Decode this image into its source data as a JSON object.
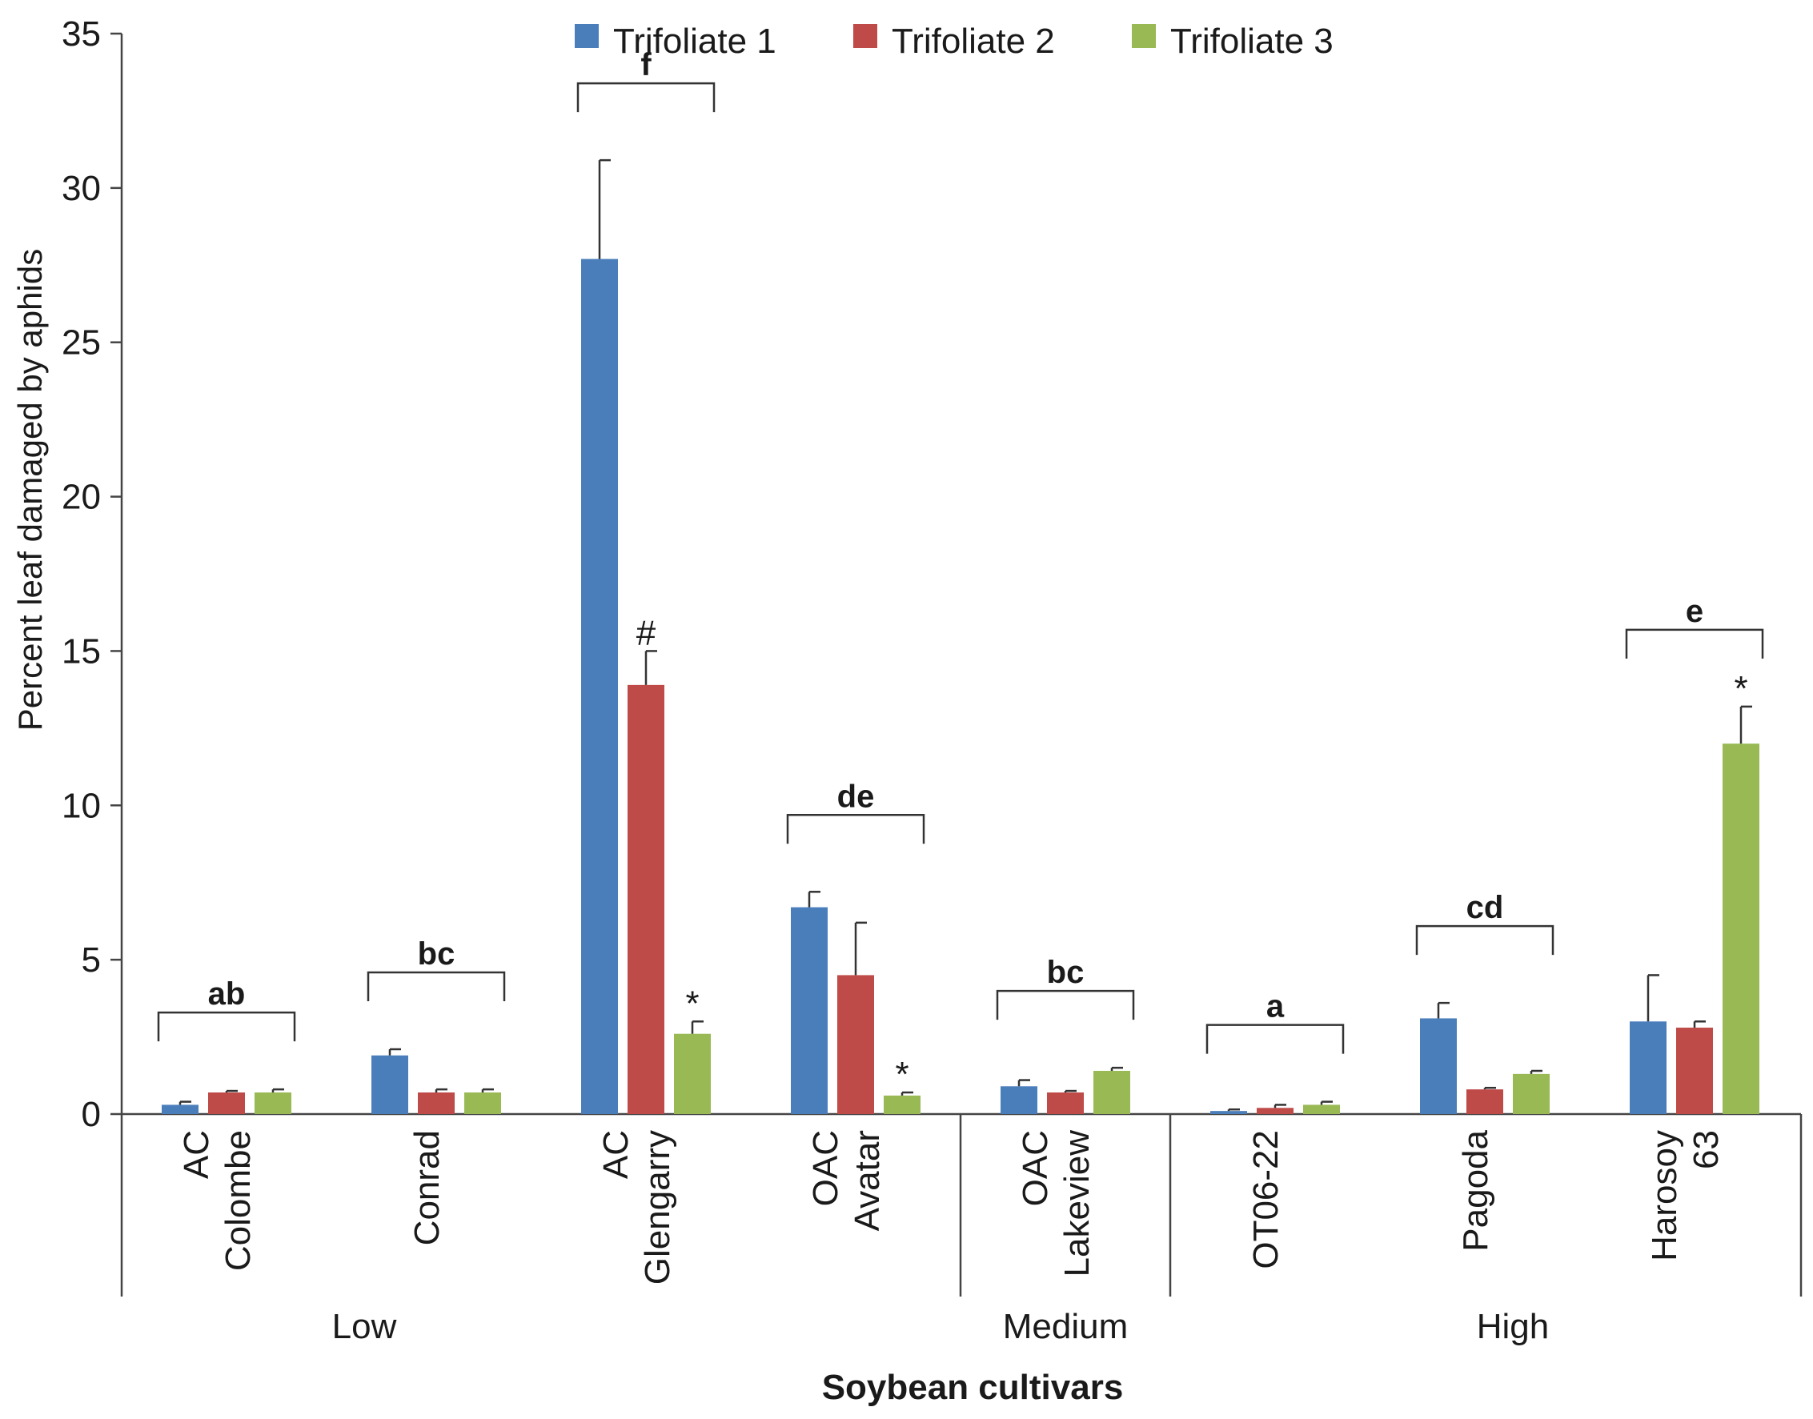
{
  "chart_data": {
    "type": "bar",
    "ylabel": "Percent leaf damaged by aphids",
    "xlabel": "Soybean cultivars",
    "ylim": [
      0,
      35
    ],
    "yticks": [
      0,
      5,
      10,
      15,
      20,
      25,
      30,
      35
    ],
    "grid": false,
    "legend_position": "top-center",
    "categories": [
      [
        "AC",
        "Colombe"
      ],
      [
        "Conrad"
      ],
      [
        "AC",
        "Glengarry"
      ],
      [
        "OAC",
        "Avatar"
      ],
      [
        "OAC",
        "Lakeview"
      ],
      [
        "OT06-22"
      ],
      [
        "Pagoda"
      ],
      [
        "Harosoy",
        "63"
      ]
    ],
    "series": [
      {
        "name": "Trifoliate 1",
        "color": "#4a7ebb",
        "values": [
          0.3,
          1.9,
          27.7,
          6.7,
          0.9,
          0.1,
          3.1,
          3.0
        ],
        "errors": [
          0.1,
          0.2,
          3.2,
          0.5,
          0.2,
          0.05,
          0.5,
          1.5
        ]
      },
      {
        "name": "Trifoliate 2",
        "color": "#be4b48",
        "values": [
          0.7,
          0.7,
          13.9,
          4.5,
          0.7,
          0.2,
          0.8,
          2.8
        ],
        "errors": [
          0.05,
          0.1,
          1.1,
          1.7,
          0.05,
          0.1,
          0.05,
          0.2
        ]
      },
      {
        "name": "Trifoliate 3",
        "color": "#98b954",
        "values": [
          0.7,
          0.7,
          2.6,
          0.6,
          1.4,
          0.3,
          1.3,
          12.0
        ],
        "errors": [
          0.1,
          0.1,
          0.4,
          0.1,
          0.1,
          0.1,
          0.1,
          1.2
        ]
      }
    ],
    "significance_letters": [
      "ab",
      "bc",
      "f",
      "de",
      "bc",
      "a",
      "cd",
      "e"
    ],
    "bar_marks": [
      {
        "category": 2,
        "series": 1,
        "text": "#"
      },
      {
        "category": 2,
        "series": 2,
        "text": "*"
      },
      {
        "category": 3,
        "series": 2,
        "text": "*"
      },
      {
        "category": 7,
        "series": 2,
        "text": "*"
      }
    ],
    "groups": [
      {
        "label": "Low",
        "from": 0,
        "to": 3
      },
      {
        "label": "Medium",
        "from": 4,
        "to": 4
      },
      {
        "label": "High",
        "from": 5,
        "to": 7
      }
    ]
  }
}
